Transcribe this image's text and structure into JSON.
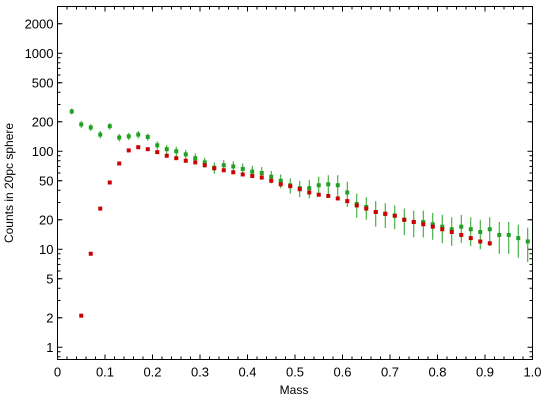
{
  "chart_data": {
    "type": "scatter",
    "title": "",
    "xlabel": "Mass",
    "ylabel": "Counts in 20pc sphere",
    "xlim": [
      0,
      1.0
    ],
    "ylim": [
      0.75,
      3000
    ],
    "yscale": "log",
    "grid": false,
    "legend": "none",
    "x_ticks": [
      0,
      0.1,
      0.2,
      0.3,
      0.4,
      0.5,
      0.6,
      0.7,
      0.8,
      0.9,
      1.0
    ],
    "x_tick_labels": [
      "0",
      "0.1",
      "0.2",
      "0.3",
      "0.4",
      "0.5",
      "0.6",
      "0.7",
      "0.8",
      "0.9",
      "1.0"
    ],
    "y_ticks": [
      1,
      2,
      5,
      10,
      20,
      50,
      100,
      200,
      500,
      1000,
      2000
    ],
    "y_tick_labels": [
      "1",
      "2",
      "5",
      "10",
      "20",
      "50",
      "100",
      "200",
      "500",
      "1000",
      "2000"
    ],
    "series": [
      {
        "color": "#cc0000",
        "marker": "square",
        "x": [
          0.05,
          0.07,
          0.09,
          0.11,
          0.13,
          0.15,
          0.17,
          0.19,
          0.21,
          0.23,
          0.25,
          0.27,
          0.29,
          0.31,
          0.33,
          0.35,
          0.37,
          0.39,
          0.41,
          0.43,
          0.45,
          0.47,
          0.49,
          0.51,
          0.53,
          0.55,
          0.57,
          0.59,
          0.61,
          0.63,
          0.65,
          0.67,
          0.69,
          0.71,
          0.73,
          0.75,
          0.77,
          0.79,
          0.81,
          0.83,
          0.85,
          0.87,
          0.89,
          0.91
        ],
        "y": [
          2.1,
          9,
          26,
          48,
          75,
          102,
          110,
          105,
          98,
          90,
          85,
          80,
          77,
          72,
          67,
          64,
          61,
          58,
          56,
          54,
          50,
          46,
          44,
          41,
          38,
          36,
          35,
          33,
          31,
          28,
          26,
          24,
          23,
          22,
          20,
          19,
          18,
          17,
          16,
          15,
          14,
          13,
          12,
          11.5
        ]
      },
      {
        "color": "#22a022",
        "marker": "cross-errorbar",
        "x": [
          0.03,
          0.05,
          0.07,
          0.09,
          0.11,
          0.13,
          0.15,
          0.17,
          0.19,
          0.21,
          0.23,
          0.25,
          0.27,
          0.29,
          0.31,
          0.33,
          0.35,
          0.37,
          0.39,
          0.41,
          0.43,
          0.45,
          0.47,
          0.49,
          0.51,
          0.53,
          0.55,
          0.57,
          0.59,
          0.61,
          0.63,
          0.65,
          0.67,
          0.69,
          0.71,
          0.73,
          0.75,
          0.77,
          0.79,
          0.81,
          0.83,
          0.85,
          0.87,
          0.89,
          0.91,
          0.93,
          0.95,
          0.97,
          0.99
        ],
        "y": [
          255,
          188,
          175,
          148,
          180,
          138,
          142,
          148,
          140,
          115,
          105,
          100,
          93,
          85,
          77,
          68,
          72,
          70,
          66,
          62,
          60,
          55,
          50,
          45,
          42,
          42,
          45,
          46,
          45,
          38,
          29,
          27,
          24,
          23,
          22,
          20,
          19,
          19,
          18,
          17,
          16,
          17,
          16,
          15,
          16,
          14,
          14,
          13,
          12
        ],
        "err": [
          18,
          15,
          14,
          13,
          14,
          12,
          12,
          13,
          12,
          11,
          11,
          11,
          10,
          10,
          9,
          9,
          9,
          9,
          9,
          9,
          9,
          8,
          8,
          8,
          8,
          9,
          10,
          11,
          12,
          11,
          8,
          7,
          7,
          6.5,
          6,
          6,
          5.8,
          5.8,
          5.5,
          5.5,
          5.2,
          5.4,
          5.2,
          5.0,
          5.2,
          5.0,
          5.0,
          4.8,
          4.6
        ]
      }
    ]
  }
}
